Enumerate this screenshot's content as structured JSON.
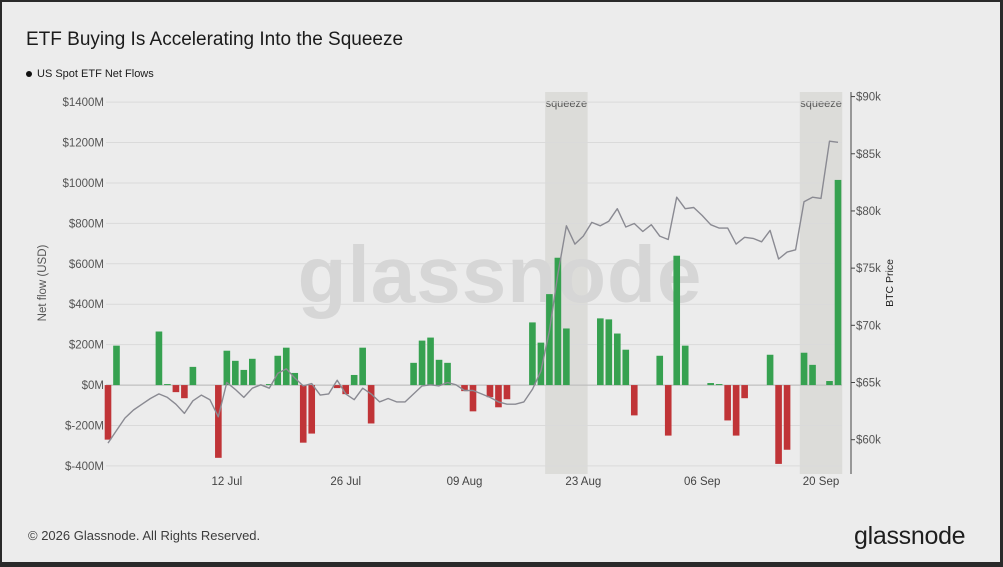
{
  "title": "ETF Buying Is Accelerating Into the Squeeze",
  "legend": {
    "label": "US Spot ETF Net Flows"
  },
  "footer": "© 2026 Glassnode. All Rights Reserved.",
  "brand": "glassnode",
  "watermark": "glassnode",
  "colors": {
    "positive": "#36a150",
    "negative": "#c03437",
    "price_line": "#8a8a92",
    "squeeze_band": "#dcdcd9"
  },
  "chart_data": {
    "type": "bar",
    "title": "ETF Buying Is Accelerating Into the Squeeze",
    "ylabel": "Net flow (USD)",
    "y2label": "BTC Price",
    "ylim": [
      -440,
      1450
    ],
    "y2lim": [
      57000,
      90400
    ],
    "y_ticks": [
      {
        "v": 1400,
        "label": "$1400M"
      },
      {
        "v": 1200,
        "label": "$1200M"
      },
      {
        "v": 1000,
        "label": "$1000M"
      },
      {
        "v": 800,
        "label": "$800M"
      },
      {
        "v": 600,
        "label": "$600M"
      },
      {
        "v": 400,
        "label": "$400M"
      },
      {
        "v": 200,
        "label": "$200M"
      },
      {
        "v": 0,
        "label": "$0M"
      },
      {
        "v": -200,
        "label": "$-200M"
      },
      {
        "v": -400,
        "label": "$-400M"
      }
    ],
    "y2_ticks": [
      {
        "v": 90000,
        "label": "$90k"
      },
      {
        "v": 85000,
        "label": "$85k"
      },
      {
        "v": 80000,
        "label": "$80k"
      },
      {
        "v": 75000,
        "label": "$75k"
      },
      {
        "v": 70000,
        "label": "$70k"
      },
      {
        "v": 65000,
        "label": "$65k"
      },
      {
        "v": 60000,
        "label": "$60k"
      }
    ],
    "x_ticks": [
      {
        "i": 14,
        "label": "12 Jul"
      },
      {
        "i": 28,
        "label": "26 Jul"
      },
      {
        "i": 42,
        "label": "09 Aug"
      },
      {
        "i": 56,
        "label": "23 Aug"
      },
      {
        "i": 70,
        "label": "06 Sep"
      },
      {
        "i": 84,
        "label": "20 Sep"
      }
    ],
    "annotations": [
      {
        "label": "squeeze",
        "from": 52,
        "to": 56
      },
      {
        "label": "squeeze",
        "from": 82,
        "to": 86
      }
    ],
    "flows": [
      -270,
      195,
      0,
      0,
      0,
      0,
      265,
      5,
      -35,
      -65,
      90,
      0,
      0,
      -360,
      170,
      120,
      75,
      130,
      0,
      5,
      145,
      185,
      60,
      -285,
      -240,
      0,
      0,
      -15,
      -45,
      50,
      185,
      -190,
      0,
      0,
      0,
      0,
      110,
      220,
      235,
      125,
      110,
      0,
      -30,
      -130,
      0,
      -60,
      -110,
      -70,
      0,
      0,
      310,
      210,
      450,
      630,
      280,
      0,
      0,
      0,
      330,
      325,
      255,
      175,
      -150,
      0,
      0,
      145,
      -250,
      640,
      195,
      0,
      0,
      10,
      5,
      -175,
      -250,
      -65,
      0,
      0,
      150,
      -390,
      -320,
      0,
      160,
      100,
      0,
      20,
      1015
    ],
    "price": [
      59700,
      60800,
      61900,
      62600,
      63100,
      63600,
      64000,
      63700,
      63100,
      62300,
      63400,
      63900,
      63500,
      62000,
      65000,
      64400,
      63700,
      64500,
      64800,
      64500,
      65800,
      66200,
      65400,
      64700,
      64900,
      63900,
      64000,
      65200,
      64000,
      63500,
      64500,
      64000,
      63300,
      63600,
      63300,
      63300,
      64000,
      64700,
      64800,
      64700,
      65000,
      64800,
      64300,
      64300,
      64000,
      63700,
      63300,
      63100,
      63100,
      63300,
      64400,
      66000,
      69500,
      74500,
      78700,
      77100,
      77800,
      79000,
      78700,
      79100,
      80200,
      78600,
      78900,
      78200,
      78800,
      77800,
      77500,
      81200,
      80200,
      80300,
      79600,
      78800,
      78500,
      78500,
      77100,
      77700,
      77600,
      77300,
      78300,
      75800,
      76400,
      76600,
      80800,
      81200,
      81100,
      86100,
      86000
    ]
  }
}
